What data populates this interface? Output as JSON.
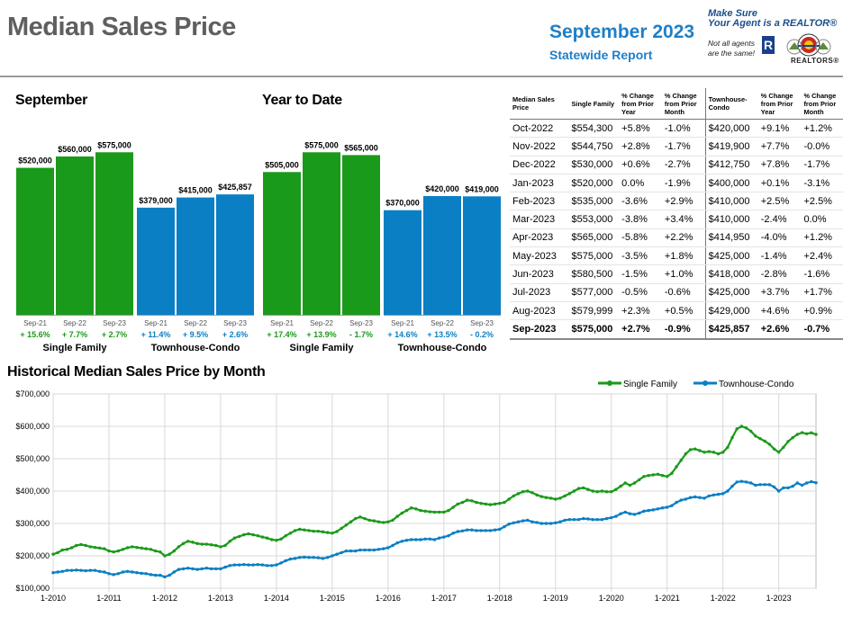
{
  "header": {
    "title": "Median Sales Price",
    "report_month": "September 2023",
    "report_sub": "Statewide Report",
    "brand_line1": "Make Sure",
    "brand_line2": "Your Agent is a REALTOR®",
    "brand_note1": "Not all agents",
    "brand_note2": "are the same!",
    "brand_r": "R",
    "brand_org": "REALTORS®"
  },
  "colors": {
    "single_family": "#1a9a1a",
    "townhouse": "#0a7fc4",
    "title_gray": "#5f5f5f",
    "accent_blue": "#1f7fc7"
  },
  "chart_data": [
    {
      "type": "bar",
      "title": "September",
      "groups": [
        "Single Family",
        "Townhouse-Condo"
      ],
      "categories": [
        "Sep-21",
        "Sep-22",
        "Sep-23"
      ],
      "series": [
        {
          "name": "Single Family",
          "values": [
            520000,
            560000,
            575000
          ],
          "value_labels": [
            "$520,000",
            "$560,000",
            "$575,000"
          ],
          "changes": [
            "+ 15.6%",
            "+ 7.7%",
            "+ 2.7%"
          ]
        },
        {
          "name": "Townhouse-Condo",
          "values": [
            379000,
            415000,
            425857
          ],
          "value_labels": [
            "$379,000",
            "$415,000",
            "$425,857"
          ],
          "changes": [
            "+ 11.4%",
            "+ 9.5%",
            "+ 2.6%"
          ]
        }
      ],
      "ylim": [
        0,
        700000
      ]
    },
    {
      "type": "bar",
      "title": "Year to Date",
      "groups": [
        "Single Family",
        "Townhouse-Condo"
      ],
      "categories": [
        "Sep-21",
        "Sep-22",
        "Sep-23"
      ],
      "series": [
        {
          "name": "Single Family",
          "values": [
            505000,
            575000,
            565000
          ],
          "value_labels": [
            "$505,000",
            "$575,000",
            "$565,000"
          ],
          "changes": [
            "+ 17.4%",
            "+ 13.9%",
            "- 1.7%"
          ]
        },
        {
          "name": "Townhouse-Condo",
          "values": [
            370000,
            420000,
            419000
          ],
          "value_labels": [
            "$370,000",
            "$420,000",
            "$419,000"
          ],
          "changes": [
            "+ 14.6%",
            "+ 13.5%",
            "- 0.2%"
          ]
        }
      ],
      "ylim": [
        0,
        700000
      ]
    },
    {
      "type": "table",
      "columns": [
        "Median Sales Price",
        "Single Family",
        "% Change from Prior Year",
        "% Change from Prior Month",
        "Townhouse-Condo",
        "% Change from Prior Year",
        "% Change from Prior Month"
      ],
      "rows": [
        [
          "Oct-2022",
          "$554,300",
          "+5.8%",
          "-1.0%",
          "$420,000",
          "+9.1%",
          "+1.2%"
        ],
        [
          "Nov-2022",
          "$544,750",
          "+2.8%",
          "-1.7%",
          "$419,900",
          "+7.7%",
          "-0.0%"
        ],
        [
          "Dec-2022",
          "$530,000",
          "+0.6%",
          "-2.7%",
          "$412,750",
          "+7.8%",
          "-1.7%"
        ],
        [
          "Jan-2023",
          "$520,000",
          "0.0%",
          "-1.9%",
          "$400,000",
          "+0.1%",
          "-3.1%"
        ],
        [
          "Feb-2023",
          "$535,000",
          "-3.6%",
          "+2.9%",
          "$410,000",
          "+2.5%",
          "+2.5%"
        ],
        [
          "Mar-2023",
          "$553,000",
          "-3.8%",
          "+3.4%",
          "$410,000",
          "-2.4%",
          "0.0%"
        ],
        [
          "Apr-2023",
          "$565,000",
          "-5.8%",
          "+2.2%",
          "$414,950",
          "-4.0%",
          "+1.2%"
        ],
        [
          "May-2023",
          "$575,000",
          "-3.5%",
          "+1.8%",
          "$425,000",
          "-1.4%",
          "+2.4%"
        ],
        [
          "Jun-2023",
          "$580,500",
          "-1.5%",
          "+1.0%",
          "$418,000",
          "-2.8%",
          "-1.6%"
        ],
        [
          "Jul-2023",
          "$577,000",
          "-0.5%",
          "-0.6%",
          "$425,000",
          "+3.7%",
          "+1.7%"
        ],
        [
          "Aug-2023",
          "$579,999",
          "+2.3%",
          "+0.5%",
          "$429,000",
          "+4.6%",
          "+0.9%"
        ],
        [
          "Sep-2023",
          "$575,000",
          "+2.7%",
          "-0.9%",
          "$425,857",
          "+2.6%",
          "-0.7%"
        ]
      ]
    },
    {
      "type": "line",
      "title": "Historical Median Sales Price by Month",
      "legend": "top-right",
      "ylim": [
        100000,
        700000
      ],
      "yticks": [
        100000,
        200000,
        300000,
        400000,
        500000,
        600000,
        700000
      ],
      "ytick_labels": [
        "$100,000",
        "$200,000",
        "$300,000",
        "$400,000",
        "$500,000",
        "$600,000",
        "$700,000"
      ],
      "xtick_labels": [
        "1-2010",
        "1-2011",
        "1-2012",
        "1-2013",
        "1-2014",
        "1-2015",
        "1-2016",
        "1-2017",
        "1-2018",
        "1-2019",
        "1-2020",
        "1-2021",
        "1-2022",
        "1-2023"
      ],
      "x_start": "2010-01",
      "x_end": "2023-09",
      "grid": true,
      "series": [
        {
          "name": "Single Family",
          "values": [
            205000,
            210000,
            218000,
            220000,
            225000,
            232000,
            235000,
            232000,
            228000,
            226000,
            224000,
            222000,
            215000,
            212000,
            215000,
            220000,
            225000,
            228000,
            226000,
            224000,
            222000,
            220000,
            215000,
            212000,
            200000,
            205000,
            215000,
            228000,
            238000,
            245000,
            242000,
            238000,
            236000,
            236000,
            234000,
            232000,
            228000,
            232000,
            245000,
            255000,
            260000,
            265000,
            268000,
            265000,
            262000,
            258000,
            255000,
            250000,
            248000,
            252000,
            262000,
            270000,
            278000,
            282000,
            280000,
            278000,
            276000,
            276000,
            274000,
            272000,
            270000,
            275000,
            285000,
            295000,
            305000,
            315000,
            320000,
            315000,
            310000,
            308000,
            305000,
            303000,
            305000,
            310000,
            322000,
            332000,
            340000,
            348000,
            345000,
            340000,
            338000,
            336000,
            335000,
            335000,
            335000,
            340000,
            350000,
            360000,
            365000,
            372000,
            370000,
            365000,
            362000,
            360000,
            358000,
            360000,
            362000,
            365000,
            375000,
            385000,
            392000,
            398000,
            400000,
            395000,
            388000,
            383000,
            380000,
            378000,
            375000,
            378000,
            385000,
            392000,
            400000,
            408000,
            410000,
            405000,
            400000,
            398000,
            400000,
            398000,
            398000,
            405000,
            415000,
            425000,
            418000,
            425000,
            435000,
            445000,
            448000,
            450000,
            452000,
            448000,
            445000,
            455000,
            475000,
            495000,
            515000,
            528000,
            530000,
            525000,
            520000,
            522000,
            520000,
            515000,
            520000,
            535000,
            565000,
            592000,
            600000,
            595000,
            585000,
            570000,
            562000,
            554300,
            544750,
            530000,
            520000,
            535000,
            553000,
            565000,
            575000,
            580500,
            577000,
            579999,
            575000
          ]
        },
        {
          "name": "Townhouse-Condo",
          "values": [
            148000,
            150000,
            152000,
            155000,
            155000,
            156000,
            155000,
            154000,
            155000,
            155000,
            152000,
            150000,
            145000,
            142000,
            145000,
            150000,
            152000,
            150000,
            148000,
            146000,
            145000,
            142000,
            140000,
            140000,
            135000,
            140000,
            150000,
            158000,
            160000,
            162000,
            160000,
            158000,
            160000,
            162000,
            160000,
            160000,
            160000,
            165000,
            170000,
            172000,
            172000,
            173000,
            172000,
            172000,
            173000,
            172000,
            170000,
            170000,
            172000,
            178000,
            185000,
            190000,
            192000,
            195000,
            196000,
            195000,
            195000,
            194000,
            192000,
            195000,
            200000,
            205000,
            210000,
            215000,
            215000,
            215000,
            218000,
            218000,
            218000,
            218000,
            220000,
            222000,
            225000,
            232000,
            240000,
            245000,
            248000,
            250000,
            250000,
            250000,
            252000,
            252000,
            250000,
            255000,
            258000,
            262000,
            270000,
            275000,
            277000,
            280000,
            280000,
            278000,
            278000,
            278000,
            278000,
            280000,
            282000,
            290000,
            298000,
            302000,
            305000,
            308000,
            310000,
            305000,
            303000,
            300000,
            300000,
            300000,
            302000,
            305000,
            310000,
            312000,
            312000,
            312000,
            315000,
            314000,
            312000,
            312000,
            312000,
            315000,
            318000,
            322000,
            330000,
            335000,
            330000,
            328000,
            332000,
            338000,
            340000,
            342000,
            345000,
            348000,
            350000,
            355000,
            365000,
            372000,
            375000,
            380000,
            382000,
            380000,
            378000,
            385000,
            388000,
            390000,
            392000,
            400000,
            415000,
            428000,
            430000,
            428000,
            425000,
            418000,
            420000,
            420000,
            419900,
            412750,
            400000,
            410000,
            410000,
            414950,
            425000,
            418000,
            425000,
            429000,
            425857
          ]
        }
      ]
    }
  ]
}
